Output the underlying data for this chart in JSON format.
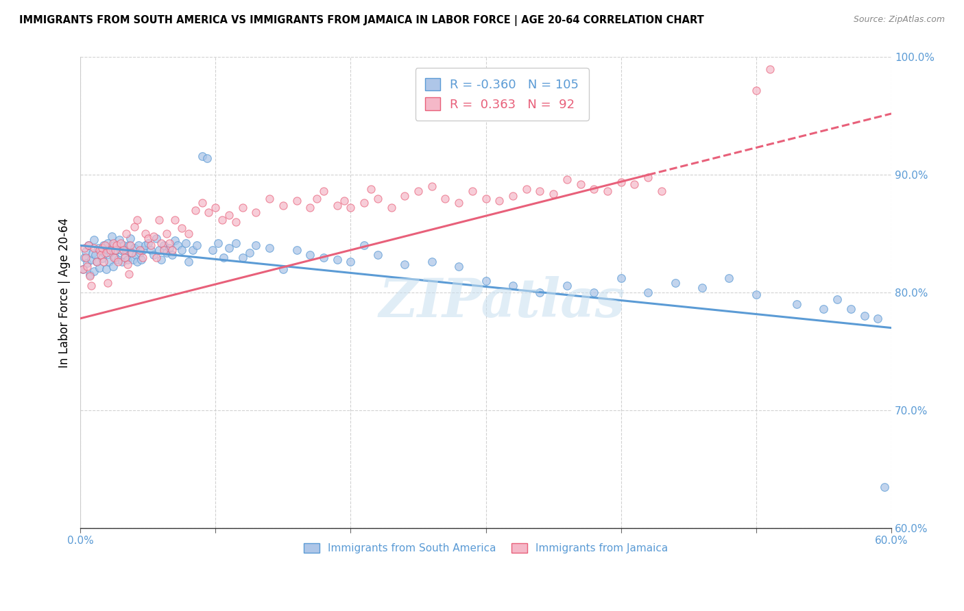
{
  "title": "IMMIGRANTS FROM SOUTH AMERICA VS IMMIGRANTS FROM JAMAICA IN LABOR FORCE | AGE 20-64 CORRELATION CHART",
  "source": "Source: ZipAtlas.com",
  "ylabel": "In Labor Force | Age 20-64",
  "legend_label1": "Immigrants from South America",
  "legend_label2": "Immigrants from Jamaica",
  "R1": -0.36,
  "N1": 105,
  "R2": 0.363,
  "N2": 92,
  "color1": "#aec6e8",
  "color2": "#f5b8c8",
  "line_color1": "#5b9bd5",
  "line_color2": "#e8607a",
  "xlim": [
    0.0,
    0.6
  ],
  "ylim": [
    0.6,
    1.0
  ],
  "xticks": [
    0.0,
    0.1,
    0.2,
    0.3,
    0.4,
    0.5,
    0.6
  ],
  "yticks": [
    0.6,
    0.7,
    0.8,
    0.9,
    1.0
  ],
  "watermark": "ZIPatlas",
  "blue_line": {
    "x0": 0.0,
    "y0": 0.84,
    "x1": 0.6,
    "y1": 0.77
  },
  "pink_line_solid": {
    "x0": 0.0,
    "y0": 0.778,
    "x1": 0.42,
    "y1": 0.9
  },
  "pink_line_dash": {
    "x0": 0.42,
    "y0": 0.9,
    "x1": 0.6,
    "y1": 0.952
  },
  "blue_x": [
    0.002,
    0.003,
    0.004,
    0.005,
    0.006,
    0.007,
    0.008,
    0.009,
    0.01,
    0.01,
    0.011,
    0.012,
    0.013,
    0.014,
    0.015,
    0.016,
    0.017,
    0.018,
    0.019,
    0.02,
    0.02,
    0.021,
    0.022,
    0.023,
    0.024,
    0.025,
    0.026,
    0.027,
    0.028,
    0.029,
    0.03,
    0.031,
    0.032,
    0.033,
    0.034,
    0.035,
    0.036,
    0.037,
    0.038,
    0.039,
    0.04,
    0.041,
    0.042,
    0.043,
    0.044,
    0.045,
    0.046,
    0.048,
    0.05,
    0.052,
    0.054,
    0.056,
    0.058,
    0.06,
    0.062,
    0.064,
    0.066,
    0.068,
    0.07,
    0.072,
    0.075,
    0.078,
    0.08,
    0.083,
    0.086,
    0.09,
    0.094,
    0.098,
    0.102,
    0.106,
    0.11,
    0.115,
    0.12,
    0.125,
    0.13,
    0.14,
    0.15,
    0.16,
    0.17,
    0.18,
    0.19,
    0.2,
    0.21,
    0.22,
    0.24,
    0.26,
    0.28,
    0.3,
    0.32,
    0.34,
    0.36,
    0.38,
    0.4,
    0.42,
    0.44,
    0.46,
    0.48,
    0.5,
    0.53,
    0.55,
    0.56,
    0.57,
    0.58,
    0.59,
    0.595
  ],
  "blue_y": [
    0.82,
    0.83,
    0.835,
    0.825,
    0.84,
    0.815,
    0.828,
    0.833,
    0.818,
    0.845,
    0.832,
    0.826,
    0.838,
    0.821,
    0.836,
    0.829,
    0.84,
    0.833,
    0.82,
    0.836,
    0.842,
    0.826,
    0.834,
    0.848,
    0.822,
    0.84,
    0.83,
    0.836,
    0.828,
    0.845,
    0.836,
    0.826,
    0.84,
    0.832,
    0.836,
    0.828,
    0.84,
    0.846,
    0.834,
    0.828,
    0.838,
    0.832,
    0.826,
    0.84,
    0.834,
    0.828,
    0.836,
    0.84,
    0.842,
    0.836,
    0.832,
    0.846,
    0.836,
    0.828,
    0.84,
    0.834,
    0.838,
    0.832,
    0.844,
    0.84,
    0.836,
    0.842,
    0.826,
    0.836,
    0.84,
    0.916,
    0.914,
    0.836,
    0.842,
    0.83,
    0.838,
    0.842,
    0.83,
    0.834,
    0.84,
    0.838,
    0.82,
    0.836,
    0.832,
    0.83,
    0.828,
    0.826,
    0.84,
    0.832,
    0.824,
    0.826,
    0.822,
    0.81,
    0.806,
    0.8,
    0.806,
    0.8,
    0.812,
    0.8,
    0.808,
    0.804,
    0.812,
    0.798,
    0.79,
    0.786,
    0.794,
    0.786,
    0.78,
    0.778,
    0.635
  ],
  "pink_x": [
    0.002,
    0.003,
    0.004,
    0.005,
    0.006,
    0.007,
    0.008,
    0.01,
    0.012,
    0.014,
    0.015,
    0.016,
    0.017,
    0.018,
    0.019,
    0.02,
    0.022,
    0.024,
    0.025,
    0.026,
    0.027,
    0.028,
    0.03,
    0.032,
    0.033,
    0.034,
    0.035,
    0.036,
    0.037,
    0.038,
    0.04,
    0.042,
    0.044,
    0.046,
    0.048,
    0.05,
    0.052,
    0.054,
    0.056,
    0.058,
    0.06,
    0.062,
    0.064,
    0.066,
    0.068,
    0.07,
    0.075,
    0.08,
    0.085,
    0.09,
    0.095,
    0.1,
    0.105,
    0.11,
    0.115,
    0.12,
    0.13,
    0.14,
    0.15,
    0.16,
    0.17,
    0.175,
    0.18,
    0.19,
    0.195,
    0.2,
    0.21,
    0.215,
    0.22,
    0.23,
    0.24,
    0.25,
    0.26,
    0.27,
    0.28,
    0.29,
    0.3,
    0.31,
    0.32,
    0.33,
    0.34,
    0.35,
    0.36,
    0.37,
    0.38,
    0.39,
    0.4,
    0.41,
    0.42,
    0.43,
    0.5,
    0.51
  ],
  "pink_y": [
    0.82,
    0.838,
    0.83,
    0.822,
    0.84,
    0.814,
    0.806,
    0.838,
    0.826,
    0.836,
    0.832,
    0.838,
    0.826,
    0.84,
    0.834,
    0.808,
    0.836,
    0.842,
    0.83,
    0.836,
    0.84,
    0.826,
    0.842,
    0.836,
    0.83,
    0.85,
    0.824,
    0.816,
    0.84,
    0.834,
    0.856,
    0.862,
    0.836,
    0.83,
    0.85,
    0.846,
    0.84,
    0.848,
    0.83,
    0.862,
    0.842,
    0.836,
    0.85,
    0.842,
    0.836,
    0.862,
    0.855,
    0.85,
    0.87,
    0.876,
    0.868,
    0.872,
    0.862,
    0.866,
    0.86,
    0.872,
    0.868,
    0.88,
    0.874,
    0.878,
    0.872,
    0.88,
    0.886,
    0.874,
    0.878,
    0.872,
    0.876,
    0.888,
    0.88,
    0.872,
    0.882,
    0.886,
    0.89,
    0.88,
    0.876,
    0.886,
    0.88,
    0.878,
    0.882,
    0.888,
    0.886,
    0.884,
    0.896,
    0.892,
    0.888,
    0.886,
    0.894,
    0.892,
    0.898,
    0.886,
    0.972,
    0.99
  ]
}
